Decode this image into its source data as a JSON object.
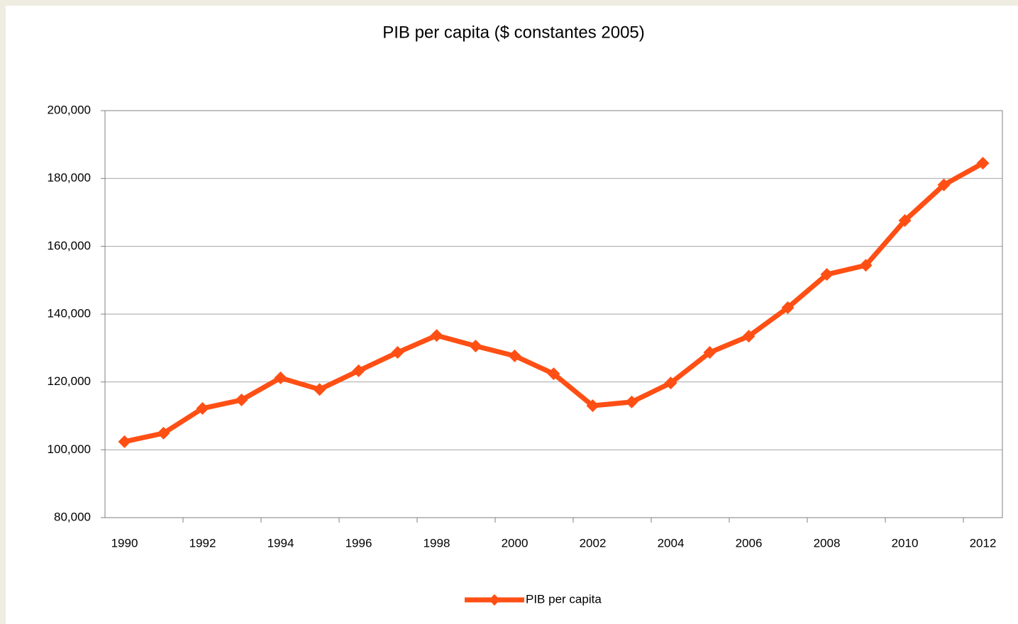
{
  "chart_data": {
    "type": "line",
    "title": "PIB per capita ($ constantes 2005)",
    "categories": [
      "1990",
      null,
      "1992",
      null,
      "1994",
      null,
      "1996",
      null,
      "1998",
      null,
      "2000",
      null,
      "2002",
      null,
      "2004",
      null,
      "2006",
      null,
      "2008",
      null,
      "2010",
      null,
      "2012"
    ],
    "series": [
      {
        "name": "PIB per capita",
        "color": "#ff4f14",
        "values": [
          102400,
          104900,
          112200,
          114700,
          121200,
          117800,
          123300,
          128700,
          133700,
          130600,
          127700,
          122400,
          113000,
          114100,
          119700,
          128700,
          133500,
          141900,
          151700,
          154400,
          167600,
          178100,
          184500
        ]
      }
    ],
    "ylim": [
      80000,
      200000
    ],
    "yticks": [
      {
        "value": 80000,
        "label": "80,000"
      },
      {
        "value": 100000,
        "label": "100,000"
      },
      {
        "value": 120000,
        "label": "120,000"
      },
      {
        "value": 140000,
        "label": "140,000"
      },
      {
        "value": 160000,
        "label": "160,000"
      },
      {
        "value": 180000,
        "label": "180,000"
      },
      {
        "value": 200000,
        "label": "200,000"
      }
    ],
    "grid": true,
    "legend": "bottom"
  }
}
